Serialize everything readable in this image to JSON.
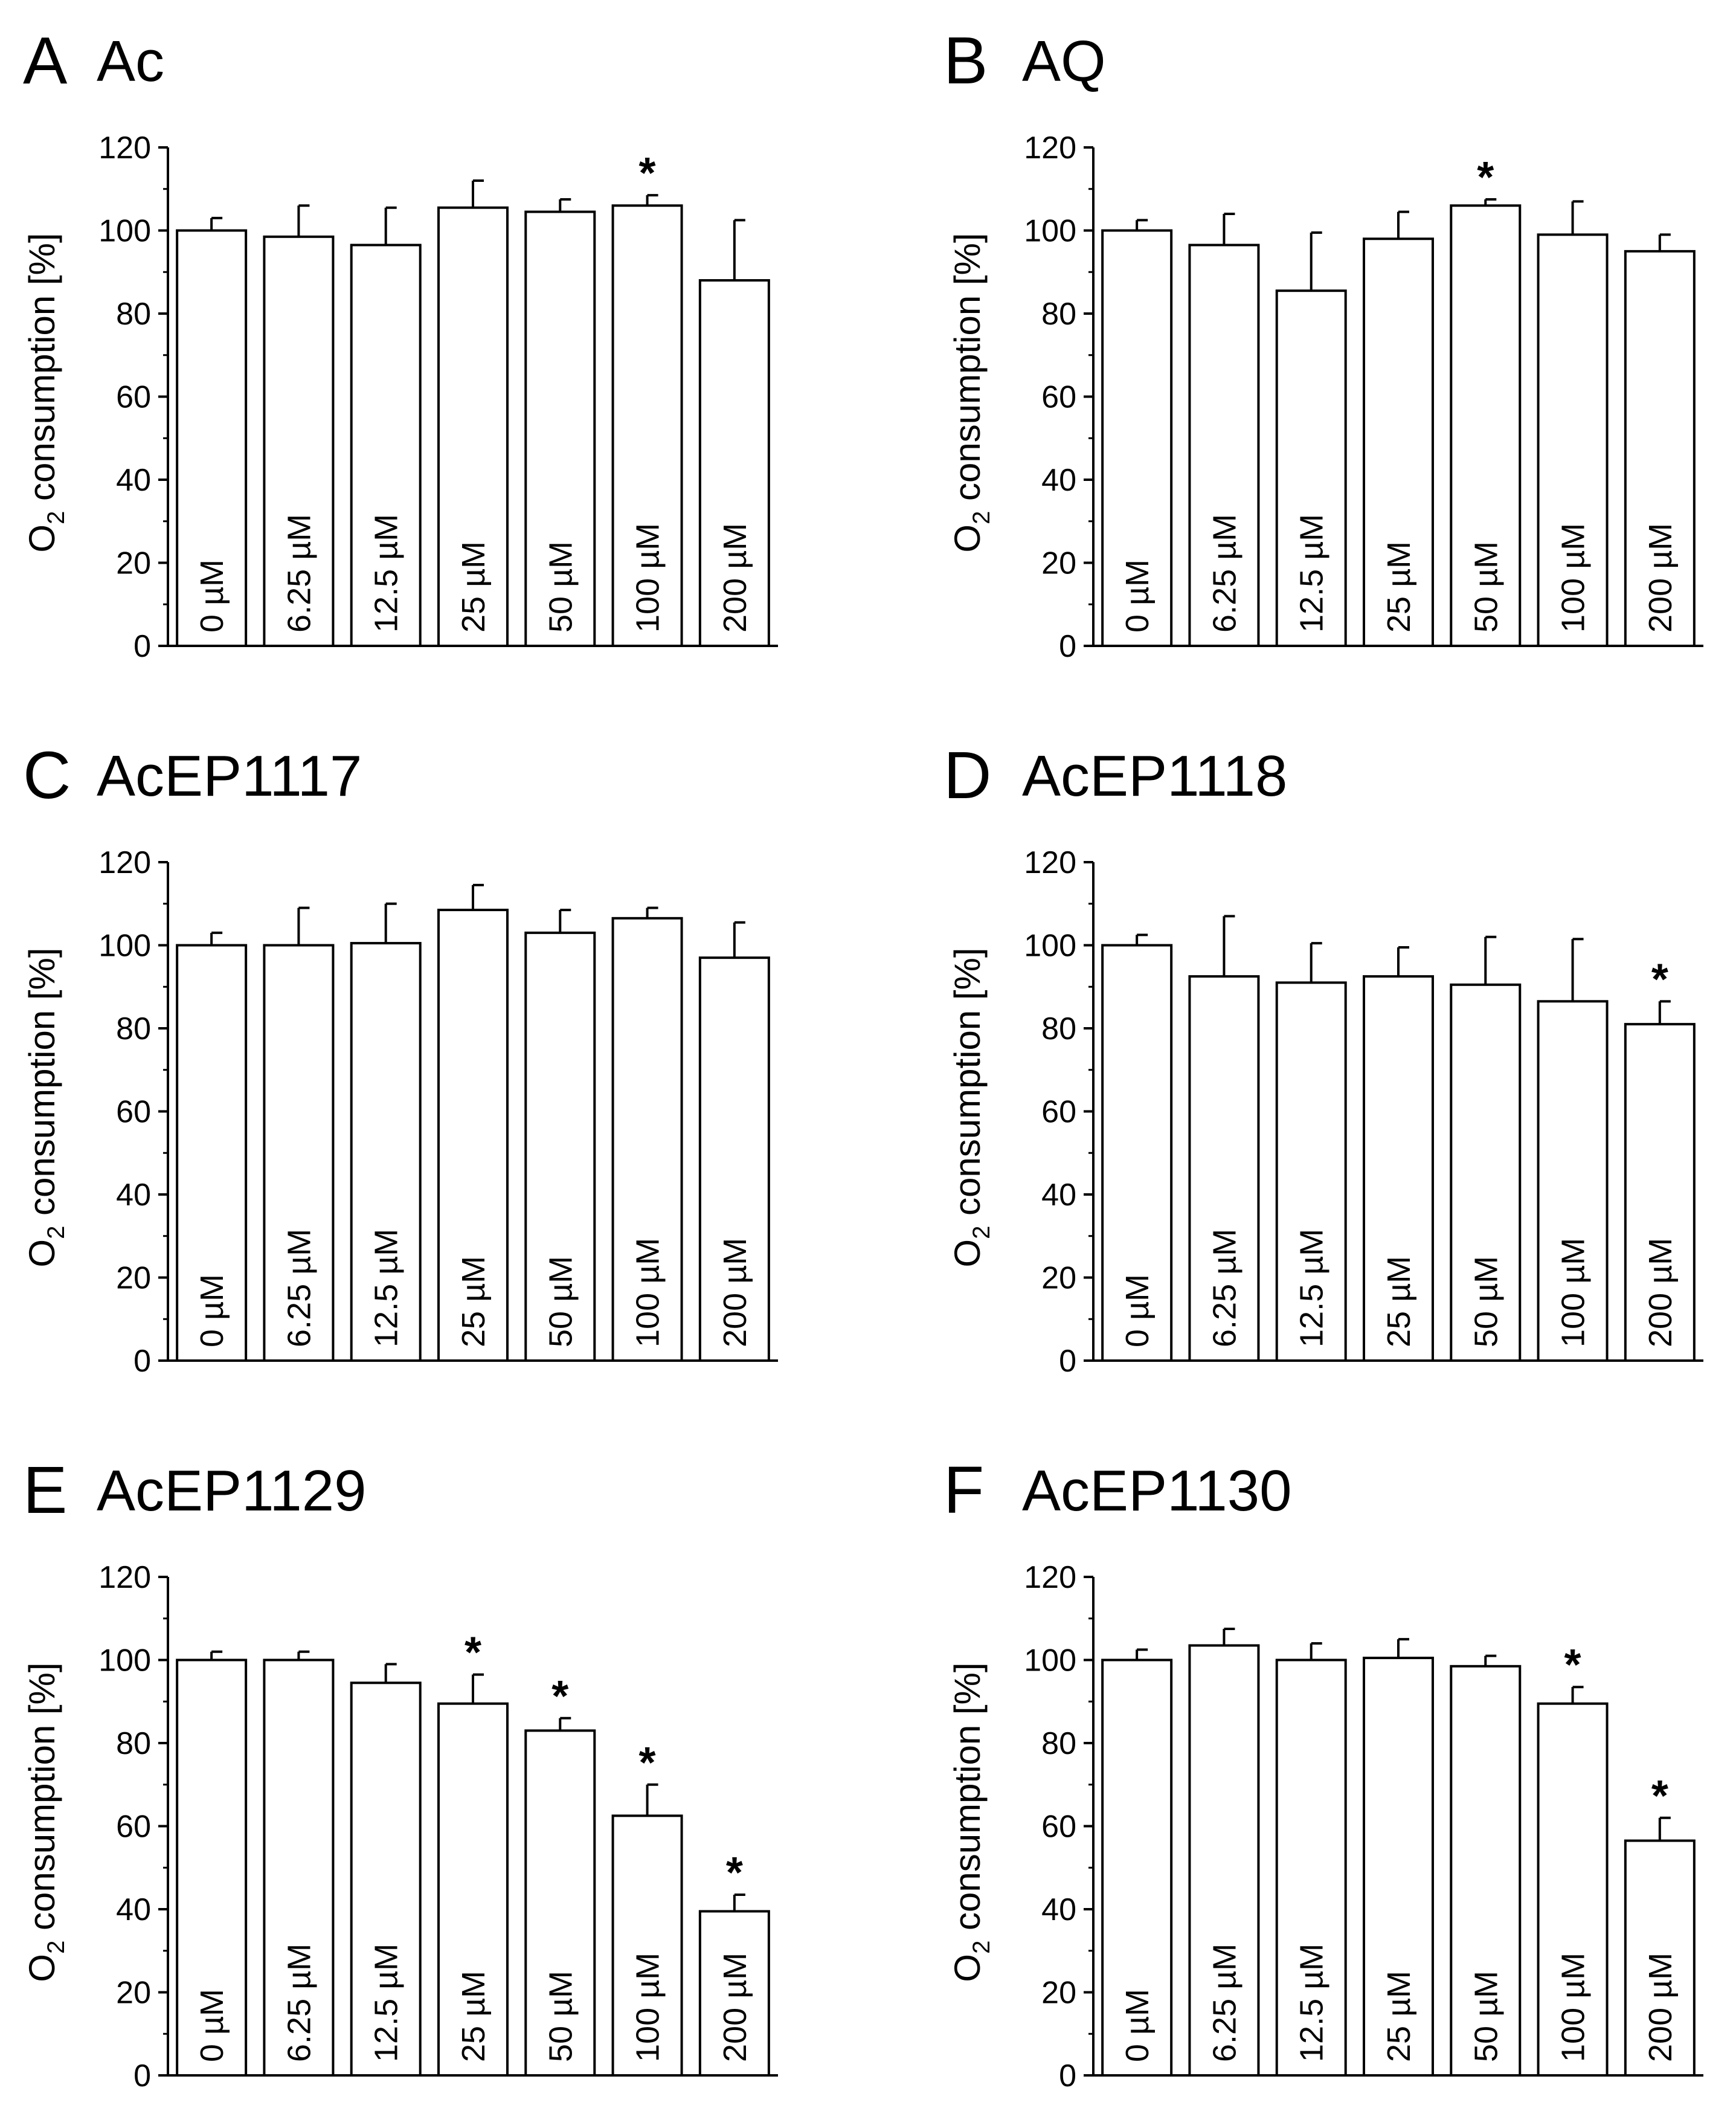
{
  "figure": {
    "ylabel": "O2 consumption [%]",
    "ylabel_main": "O",
    "ylabel_sub": "2",
    "ylabel_rest": " consumption [%]",
    "ylim": [
      0,
      120
    ],
    "yticks": [
      "0",
      "20",
      "40",
      "60",
      "80",
      "100",
      "120"
    ],
    "significance_marker": "*"
  },
  "chart_data": [
    {
      "type": "bar",
      "panel": "A",
      "title": "Ac",
      "categories": [
        "0 µM",
        "6.25 µM",
        "12.5 µM",
        "25 µM",
        "50 µM",
        "100 µM",
        "200 µM"
      ],
      "values": [
        100,
        98.5,
        96.5,
        105.5,
        104.5,
        106,
        88
      ],
      "errors": [
        3,
        7.5,
        9,
        6.5,
        3,
        2.5,
        14.5
      ],
      "significant": [
        false,
        false,
        false,
        false,
        false,
        true,
        false
      ],
      "ylabel": "O2 consumption [%]",
      "ylim": [
        0,
        120
      ]
    },
    {
      "type": "bar",
      "panel": "B",
      "title": "AQ",
      "categories": [
        "0 µM",
        "6.25 µM",
        "12.5 µM",
        "25 µM",
        "50 µM",
        "100 µM",
        "200 µM"
      ],
      "values": [
        100,
        96.5,
        85.5,
        98,
        106,
        99,
        95
      ],
      "errors": [
        2.5,
        7.5,
        14,
        6.5,
        1.5,
        8,
        4
      ],
      "significant": [
        false,
        false,
        false,
        false,
        true,
        false,
        false
      ],
      "ylabel": "O2 consumption [%]",
      "ylim": [
        0,
        120
      ]
    },
    {
      "type": "bar",
      "panel": "C",
      "title": "AcEP1117",
      "categories": [
        "0 µM",
        "6.25 µM",
        "12.5 µM",
        "25 µM",
        "50 µM",
        "100 µM",
        "200 µM"
      ],
      "values": [
        100,
        100,
        100.5,
        108.5,
        103,
        106.5,
        97
      ],
      "errors": [
        3,
        9,
        9.5,
        6,
        5.5,
        2.5,
        8.5
      ],
      "significant": [
        false,
        false,
        false,
        false,
        false,
        false,
        false
      ],
      "ylabel": "O2 consumption [%]",
      "ylim": [
        0,
        120
      ]
    },
    {
      "type": "bar",
      "panel": "D",
      "title": "AcEP1118",
      "categories": [
        "0 µM",
        "6.25 µM",
        "12.5 µM",
        "25 µM",
        "50 µM",
        "100 µM",
        "200 µM"
      ],
      "values": [
        100,
        92.5,
        91,
        92.5,
        90.5,
        86.5,
        81
      ],
      "errors": [
        2.5,
        14.5,
        9.5,
        7,
        11.5,
        15,
        5.5
      ],
      "significant": [
        false,
        false,
        false,
        false,
        false,
        false,
        true
      ],
      "ylabel": "O2 consumption [%]",
      "ylim": [
        0,
        120
      ]
    },
    {
      "type": "bar",
      "panel": "E",
      "title": "AcEP1129",
      "categories": [
        "0 µM",
        "6.25 µM",
        "12.5 µM",
        "25 µM",
        "50 µM",
        "100 µM",
        "200 µM"
      ],
      "values": [
        100,
        100,
        94.5,
        89.5,
        83,
        62.5,
        39.5
      ],
      "errors": [
        2,
        2,
        4.5,
        7,
        3,
        7.5,
        4
      ],
      "significant": [
        false,
        false,
        false,
        true,
        true,
        true,
        true
      ],
      "ylabel": "O2 consumption [%]",
      "ylim": [
        0,
        120
      ]
    },
    {
      "type": "bar",
      "panel": "F",
      "title": "AcEP1130",
      "categories": [
        "0 µM",
        "6.25 µM",
        "12.5 µM",
        "25 µM",
        "50 µM",
        "100 µM",
        "200 µM"
      ],
      "values": [
        100,
        103.5,
        100,
        100.5,
        98.5,
        89.5,
        56.5
      ],
      "errors": [
        2.5,
        4,
        4,
        4.5,
        2.5,
        4,
        5.5
      ],
      "significant": [
        false,
        false,
        false,
        false,
        false,
        true,
        true
      ],
      "ylabel": "O2 consumption [%]",
      "ylim": [
        0,
        120
      ]
    }
  ]
}
